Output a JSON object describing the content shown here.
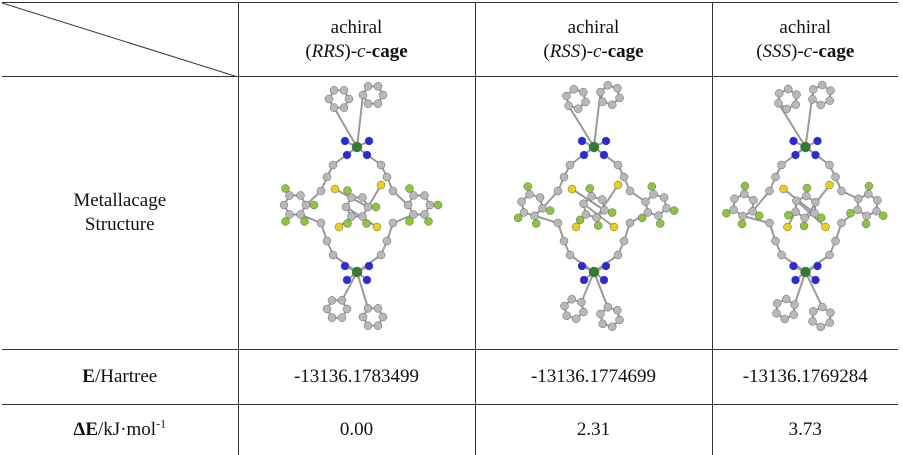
{
  "table": {
    "columns": [
      {
        "line1": "achiral",
        "line2": [
          {
            "text": "(",
            "style": "normal"
          },
          {
            "text": "RRS",
            "style": "italic"
          },
          {
            "text": ")-",
            "style": "normal"
          },
          {
            "text": "c",
            "style": "italic"
          },
          {
            "text": "-",
            "style": "normal"
          },
          {
            "text": "cage",
            "style": "bold"
          }
        ]
      },
      {
        "line1": "achiral",
        "line2": [
          {
            "text": "(",
            "style": "normal"
          },
          {
            "text": "RSS",
            "style": "italic"
          },
          {
            "text": ")-",
            "style": "normal"
          },
          {
            "text": "c",
            "style": "italic"
          },
          {
            "text": "-",
            "style": "normal"
          },
          {
            "text": "cage",
            "style": "bold"
          }
        ]
      },
      {
        "line1": "achiral",
        "line2": [
          {
            "text": "(",
            "style": "normal"
          },
          {
            "text": "SSS",
            "style": "italic"
          },
          {
            "text": ")-",
            "style": "normal"
          },
          {
            "text": "c",
            "style": "italic"
          },
          {
            "text": "-",
            "style": "normal"
          },
          {
            "text": "cage",
            "style": "bold"
          }
        ]
      }
    ],
    "structure_label": {
      "line1": "Metallacage",
      "line2": "Structure"
    },
    "rows": [
      {
        "label": [
          {
            "text": "E",
            "style": "bold"
          },
          {
            "text": "/Hartree",
            "style": "normal"
          }
        ],
        "values": [
          "-13136.1783499",
          "-13136.1774699",
          "-13136.1769284"
        ]
      },
      {
        "label": [
          {
            "text": "ΔE",
            "style": "bold"
          },
          {
            "text": "/kJ·mol",
            "style": "normal"
          },
          {
            "text": "-1",
            "style": "sup"
          }
        ],
        "values": [
          "0.00",
          "2.31",
          "3.73"
        ]
      }
    ]
  }
}
